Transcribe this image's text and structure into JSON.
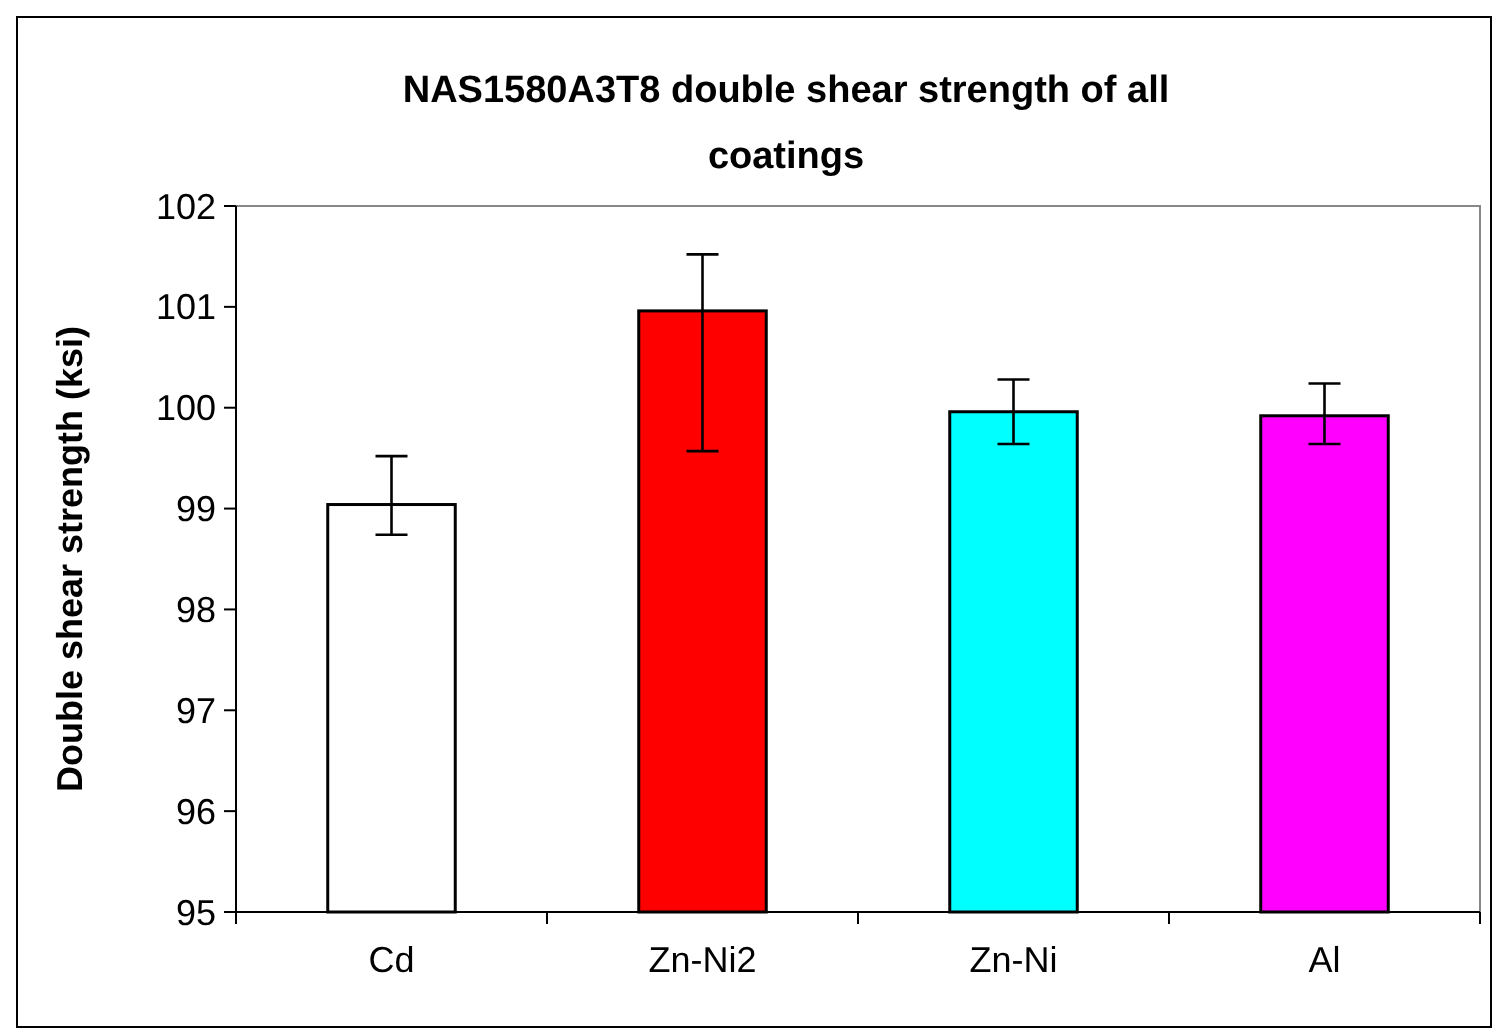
{
  "chart_data": {
    "type": "bar",
    "title": "NAS1580A3T8 double shear strength of all coatings",
    "ylabel": "Double shear strength (ksi)",
    "categories": [
      "Cd",
      "Zn-Ni2",
      "Zn-Ni",
      "Al"
    ],
    "values": [
      99.04,
      100.96,
      99.96,
      99.92
    ],
    "colors": [
      "#ffffff",
      "#ff0000",
      "#00ffff",
      "#ff00ff"
    ],
    "errors": [
      [
        98.74,
        99.52
      ],
      [
        99.57,
        101.52
      ],
      [
        99.64,
        100.28
      ],
      [
        99.64,
        100.24
      ]
    ],
    "ylim": [
      95,
      102
    ],
    "yticks": [
      95,
      96,
      97,
      98,
      99,
      100,
      101,
      102
    ],
    "grid": false
  }
}
